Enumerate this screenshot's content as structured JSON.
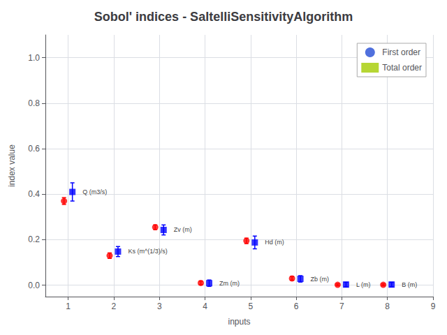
{
  "chart_data": {
    "type": "scatter",
    "title": "Sobol' indices - SaltelliSensitivityAlgorithm",
    "xlabel": "inputs",
    "ylabel": "index value",
    "xlim": [
      0.5,
      9.0
    ],
    "ylim": [
      -0.05,
      1.1
    ],
    "xticks": [
      1,
      2,
      3,
      4,
      5,
      6,
      7,
      8,
      9
    ],
    "yticks": [
      {
        "value": 0.0,
        "label": "0.0"
      },
      0.2,
      0.4,
      0.6,
      0.8,
      {
        "value": 1.0,
        "label": "1.0"
      }
    ],
    "x": [
      1,
      2,
      3,
      4,
      5,
      6,
      7,
      8
    ],
    "series": [
      {
        "name": "First order",
        "color": "#ff0000",
        "marker": "circle",
        "values": [
          0.37,
          0.13,
          0.255,
          0.01,
          0.195,
          0.03,
          0.002,
          0.002
        ],
        "yerr_low": [
          0.015,
          0.012,
          0.01,
          0.008,
          0.012,
          0.008,
          0.004,
          0.004
        ],
        "yerr_high": [
          0.015,
          0.012,
          0.01,
          0.008,
          0.012,
          0.008,
          0.004,
          0.004
        ]
      },
      {
        "name": "Total order",
        "color": "#0000ff",
        "marker": "square",
        "values": [
          0.41,
          0.148,
          0.243,
          0.009,
          0.188,
          0.028,
          0.003,
          0.003
        ],
        "yerr_low": [
          0.04,
          0.022,
          0.022,
          0.014,
          0.028,
          0.014,
          0.01,
          0.01
        ],
        "yerr_high": [
          0.04,
          0.022,
          0.022,
          0.014,
          0.028,
          0.014,
          0.01,
          0.01
        ],
        "annotations": [
          "Q (m3/s)",
          "Ks (m^(1/3)/s)",
          "Zv (m)",
          "Zm (m)",
          "Hd (m)",
          "Zb (m)",
          "L (m)",
          "B (m)"
        ]
      }
    ],
    "grid": true,
    "legend": "upper right"
  }
}
